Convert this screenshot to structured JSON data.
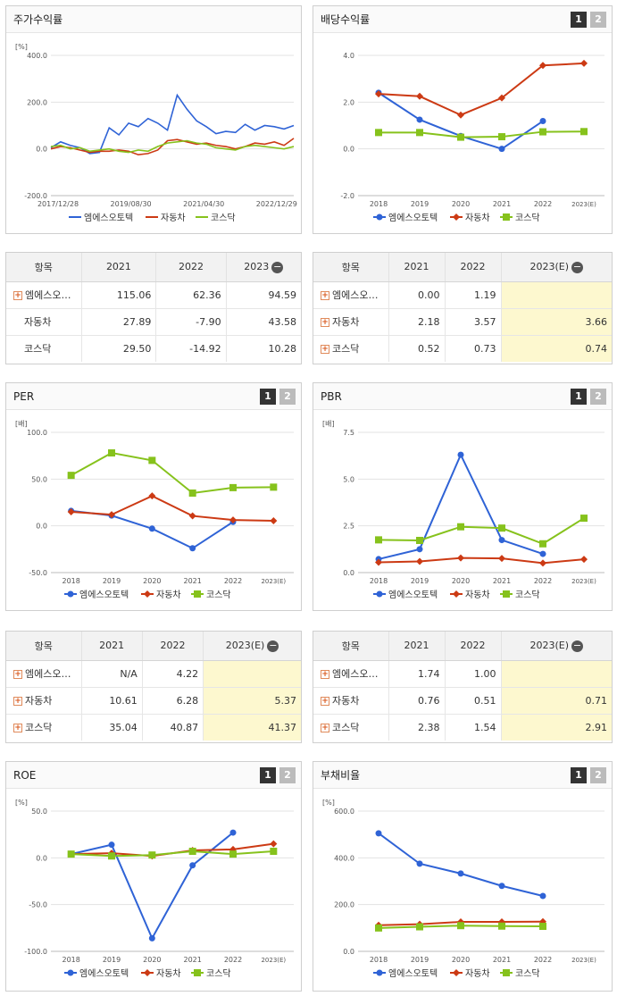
{
  "panels": {
    "stock": {
      "title": "주가수익률"
    },
    "div": {
      "title": "배당수익률",
      "tab1": "1",
      "tab2": "2"
    },
    "per": {
      "title": "PER",
      "tab1": "1",
      "tab2": "2"
    },
    "pbr": {
      "title": "PBR",
      "tab1": "1",
      "tab2": "2"
    },
    "roe": {
      "title": "ROE",
      "tab1": "1",
      "tab2": "2"
    },
    "debt": {
      "title": "부채비율",
      "tab1": "1",
      "tab2": "2"
    }
  },
  "colors": {
    "company": "#2f63d6",
    "auto": "#cc3a14",
    "kosdaq": "#86c21c"
  },
  "chart_data": [
    {
      "id": "stock",
      "type": "line",
      "unit": "[%]",
      "ylim": [
        -200,
        400
      ],
      "yticks": [
        "400.0",
        "200.0",
        "0.0",
        "-200.0"
      ],
      "xticks": [
        "2017/12/28",
        "2019/08/30",
        "2021/04/30",
        "2022/12/29"
      ],
      "x": [
        0,
        4,
        8,
        12,
        16,
        20,
        24,
        28,
        32,
        36,
        40,
        44,
        48,
        52,
        56,
        60,
        64,
        68,
        72,
        76,
        80,
        84,
        88,
        92,
        96,
        100
      ],
      "series": [
        {
          "name": "엠에스오토텍",
          "values": [
            5,
            30,
            15,
            5,
            -20,
            -15,
            90,
            60,
            110,
            95,
            130,
            110,
            80,
            230,
            170,
            120,
            95,
            65,
            75,
            70,
            105,
            80,
            100,
            95,
            85,
            100
          ]
        },
        {
          "name": "자동차",
          "values": [
            0,
            10,
            5,
            -5,
            -15,
            -10,
            -10,
            -5,
            -10,
            -25,
            -20,
            -5,
            35,
            40,
            30,
            20,
            25,
            15,
            10,
            0,
            10,
            25,
            20,
            30,
            15,
            45
          ]
        },
        {
          "name": "코스닥",
          "values": [
            10,
            15,
            0,
            5,
            -10,
            -5,
            0,
            -10,
            -15,
            -5,
            -10,
            10,
            25,
            30,
            35,
            25,
            20,
            5,
            0,
            -5,
            10,
            15,
            10,
            5,
            0,
            10
          ]
        }
      ]
    },
    {
      "id": "div",
      "type": "line",
      "ylim": [
        -2,
        4
      ],
      "yticks": [
        "4.0",
        "2.0",
        "0.0",
        "-2.0"
      ],
      "categories": [
        "2018",
        "2019",
        "2020",
        "2021",
        "2022",
        "2023(E)"
      ],
      "series": [
        {
          "name": "엠에스오토텍",
          "values": [
            2.4,
            1.25,
            0.55,
            0.0,
            1.19,
            null
          ]
        },
        {
          "name": "자동차",
          "values": [
            2.35,
            2.25,
            1.45,
            2.18,
            3.57,
            3.66
          ]
        },
        {
          "name": "코스닥",
          "values": [
            0.7,
            0.7,
            0.5,
            0.52,
            0.73,
            0.74
          ]
        }
      ]
    },
    {
      "id": "per",
      "type": "line",
      "unit": "[배]",
      "ylim": [
        -50,
        100
      ],
      "yticks": [
        "100.0",
        "50.0",
        "0.0",
        "-50.0"
      ],
      "categories": [
        "2018",
        "2019",
        "2020",
        "2021",
        "2022",
        "2023(E)"
      ],
      "series": [
        {
          "name": "엠에스오토텍",
          "values": [
            16,
            11,
            -3,
            -24,
            4.22,
            null
          ]
        },
        {
          "name": "자동차",
          "values": [
            15,
            12,
            32,
            10.61,
            6.28,
            5.37
          ]
        },
        {
          "name": "코스닥",
          "values": [
            54,
            78,
            70,
            35.04,
            40.87,
            41.37
          ]
        }
      ]
    },
    {
      "id": "pbr",
      "type": "line",
      "unit": "[배]",
      "ylim": [
        0,
        7.5
      ],
      "yticks": [
        "7.5",
        "5.0",
        "2.5",
        "0.0"
      ],
      "categories": [
        "2018",
        "2019",
        "2020",
        "2021",
        "2022",
        "2023(E)"
      ],
      "series": [
        {
          "name": "엠에스오토텍",
          "values": [
            0.72,
            1.25,
            6.3,
            1.74,
            1.0,
            null
          ]
        },
        {
          "name": "자동차",
          "values": [
            0.55,
            0.6,
            0.78,
            0.76,
            0.51,
            0.71
          ]
        },
        {
          "name": "코스닥",
          "values": [
            1.75,
            1.72,
            2.45,
            2.38,
            1.54,
            2.91
          ]
        }
      ]
    },
    {
      "id": "roe",
      "type": "line",
      "unit": "[%]",
      "ylim": [
        -100,
        50
      ],
      "yticks": [
        "50.0",
        "0.0",
        "-50.0",
        "-100.0"
      ],
      "categories": [
        "2018",
        "2019",
        "2020",
        "2021",
        "2022",
        "2023(E)"
      ],
      "series": [
        {
          "name": "엠에스오토텍",
          "values": [
            4,
            14,
            -86,
            -8,
            27,
            null
          ]
        },
        {
          "name": "자동차",
          "values": [
            4,
            5,
            2,
            8,
            9,
            15
          ]
        },
        {
          "name": "코스닥",
          "values": [
            4,
            2,
            3,
            7,
            4,
            7
          ]
        }
      ]
    },
    {
      "id": "debt",
      "type": "line",
      "unit": "[%]",
      "ylim": [
        0,
        600
      ],
      "yticks": [
        "600.0",
        "400.0",
        "200.0",
        "0.0"
      ],
      "categories": [
        "2018",
        "2019",
        "2020",
        "2021",
        "2022",
        "2023(E)"
      ],
      "series": [
        {
          "name": "엠에스오토텍",
          "values": [
            505,
            375,
            333,
            280,
            237,
            null
          ]
        },
        {
          "name": "자동차",
          "values": [
            112,
            116,
            126,
            126,
            127,
            null
          ]
        },
        {
          "name": "코스닥",
          "values": [
            100,
            105,
            110,
            108,
            107,
            null
          ]
        }
      ]
    }
  ],
  "tables": {
    "stock": {
      "headers": [
        "항목",
        "2021",
        "2022",
        "2023"
      ],
      "rows": [
        {
          "name": "엠에스오…",
          "v": [
            "115.06",
            "62.36",
            "94.59"
          ]
        },
        {
          "name": "자동차",
          "v": [
            "27.89",
            "-7.90",
            "43.58"
          ]
        },
        {
          "name": "코스닥",
          "v": [
            "29.50",
            "-14.92",
            "10.28"
          ]
        }
      ]
    },
    "div": {
      "headers": [
        "항목",
        "2021",
        "2022",
        "2023(E)"
      ],
      "rows": [
        {
          "name": "엠에스오…",
          "v": [
            "0.00",
            "1.19",
            ""
          ]
        },
        {
          "name": "자동차",
          "v": [
            "2.18",
            "3.57",
            "3.66"
          ]
        },
        {
          "name": "코스닥",
          "v": [
            "0.52",
            "0.73",
            "0.74"
          ]
        }
      ]
    },
    "per": {
      "headers": [
        "항목",
        "2021",
        "2022",
        "2023(E)"
      ],
      "rows": [
        {
          "name": "엠에스오…",
          "v": [
            "N/A",
            "4.22",
            ""
          ]
        },
        {
          "name": "자동차",
          "v": [
            "10.61",
            "6.28",
            "5.37"
          ]
        },
        {
          "name": "코스닥",
          "v": [
            "35.04",
            "40.87",
            "41.37"
          ]
        }
      ]
    },
    "pbr": {
      "headers": [
        "항목",
        "2021",
        "2022",
        "2023(E)"
      ],
      "rows": [
        {
          "name": "엠에스오…",
          "v": [
            "1.74",
            "1.00",
            ""
          ]
        },
        {
          "name": "자동차",
          "v": [
            "0.76",
            "0.51",
            "0.71"
          ]
        },
        {
          "name": "코스닥",
          "v": [
            "2.38",
            "1.54",
            "2.91"
          ]
        }
      ]
    }
  }
}
